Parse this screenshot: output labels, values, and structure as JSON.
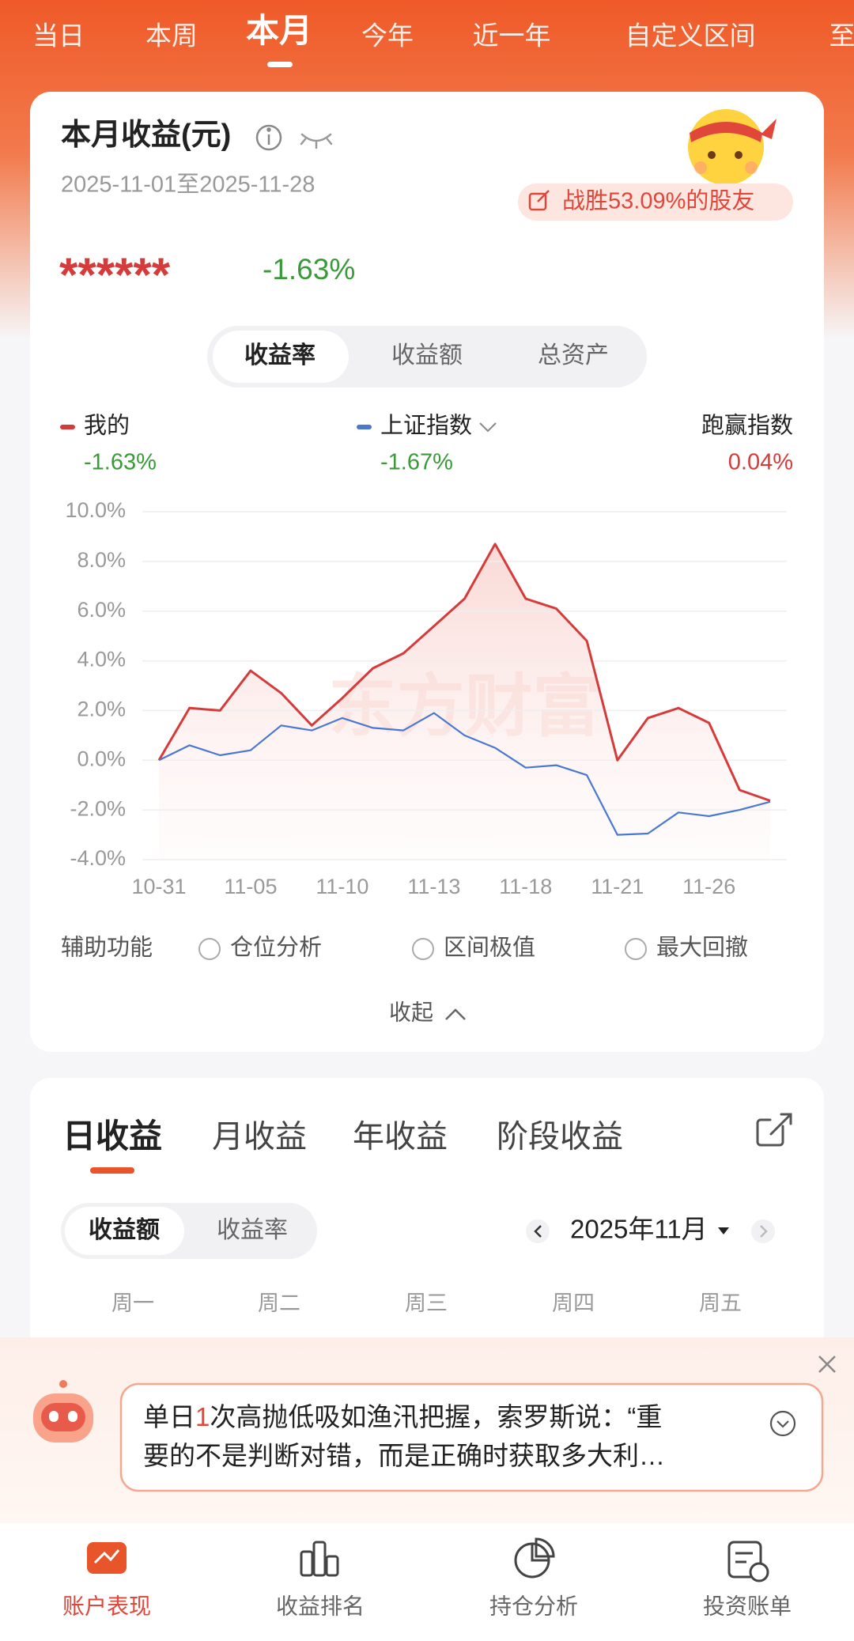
{
  "top_tabs": [
    "当日",
    "本周",
    "本月",
    "今年",
    "近一年",
    "自定义区间",
    "至"
  ],
  "card": {
    "title": "本月收益(元)",
    "date_range": "2025-11-01至2025-11-28",
    "badge": "战胜53.09%的股友",
    "hidden_amount": "******",
    "return_rate": "-1.63%",
    "segments": [
      "收益率",
      "收益额",
      "总资产"
    ],
    "legend_values": [
      "-1.63%",
      "-1.67%"
    ],
    "excess_name": "跑赢指数",
    "excess_value": "0.04%",
    "tools_label": "辅助功能",
    "tools": [
      "仓位分析",
      "区间极值",
      "最大回撤"
    ],
    "collapse": "收起"
  },
  "chart_data": {
    "type": "line",
    "watermark": "东方财富",
    "categories": [
      "10-31",
      null,
      null,
      "11-05",
      null,
      null,
      "11-10",
      null,
      null,
      "11-13",
      null,
      null,
      "11-18",
      null,
      null,
      "11-21",
      null,
      null,
      "11-26",
      null,
      null
    ],
    "series": [
      {
        "name": "我的",
        "color": "#d63b3b",
        "values": [
          0.0,
          2.1,
          2.0,
          3.6,
          2.7,
          1.4,
          2.5,
          3.7,
          4.3,
          5.4,
          6.5,
          8.7,
          6.5,
          6.1,
          4.8,
          0.0,
          1.7,
          2.1,
          1.5,
          -1.2,
          -1.63
        ]
      },
      {
        "name": "上证指数",
        "color": "#4a78d0",
        "values": [
          0.0,
          0.6,
          0.2,
          0.4,
          1.4,
          1.2,
          1.7,
          1.3,
          1.2,
          1.9,
          1.0,
          0.5,
          -0.3,
          -0.2,
          -0.6,
          -3.0,
          -2.95,
          -2.1,
          -2.25,
          -2.0,
          -1.67
        ]
      }
    ],
    "ylim": [
      -4,
      10
    ],
    "yticks": [
      {
        "value": 10,
        "label": "10.0%"
      },
      {
        "value": 8,
        "label": "8.0%"
      },
      {
        "value": 6,
        "label": "6.0%"
      },
      {
        "value": 4,
        "label": "4.0%"
      },
      {
        "value": 2,
        "label": "2.0%"
      },
      {
        "value": 0,
        "label": "0.0%"
      },
      {
        "value": -2,
        "label": "-2.0%"
      },
      {
        "value": -4,
        "label": "-4.0%"
      }
    ],
    "grid": true
  },
  "detail": {
    "tabs": [
      "日收益",
      "月收益",
      "年收益",
      "阶段收益"
    ],
    "toggle": [
      "收益额",
      "收益率"
    ],
    "month": "2025年11月",
    "weekdays": [
      "周一",
      "周二",
      "周三",
      "周四",
      "周五"
    ]
  },
  "banner": {
    "lines": [
      [
        "单日",
        "1",
        "次高抛低吸如渔汛把握，索罗斯说：“重"
      ],
      [
        "要的不是判断对错，而是正确时获取多大利…"
      ]
    ]
  },
  "nav": [
    "账户表现",
    "收益排名",
    "持仓分析",
    "投资账单"
  ]
}
